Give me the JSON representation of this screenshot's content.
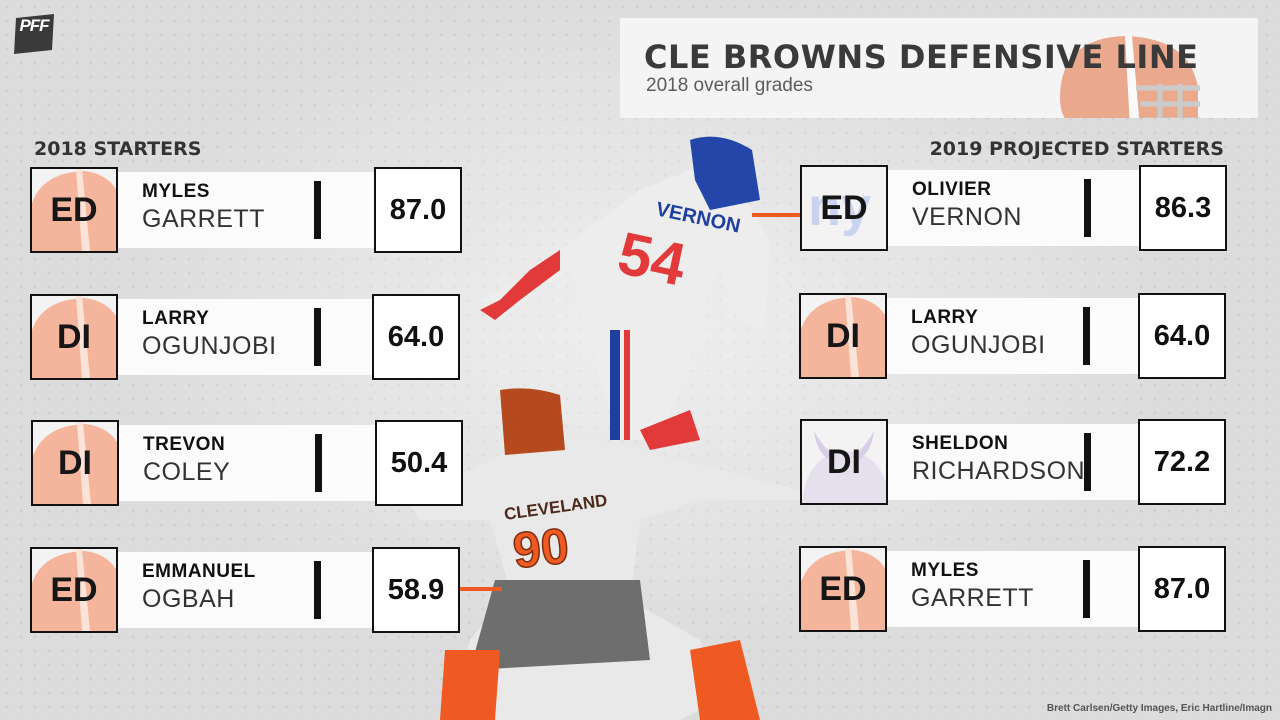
{
  "header": {
    "title": "CLE BROWNS DEFENSIVE LINE",
    "subtitle": "2018 overall grades",
    "logo_text": "PFF"
  },
  "left": {
    "heading": "2018 STARTERS",
    "rows": [
      {
        "pos": "ED",
        "first": "MYLES",
        "last": "GARRETT",
        "grade": "87.0",
        "team": "browns"
      },
      {
        "pos": "DI",
        "first": "LARRY",
        "last": "OGUNJOBI",
        "grade": "64.0",
        "team": "browns"
      },
      {
        "pos": "DI",
        "first": "TREVON",
        "last": "COLEY",
        "grade": "50.4",
        "team": "browns"
      },
      {
        "pos": "ED",
        "first": "EMMANUEL",
        "last": "OGBAH",
        "grade": "58.9",
        "team": "browns"
      }
    ]
  },
  "right": {
    "heading": "2019 PROJECTED STARTERS",
    "rows": [
      {
        "pos": "ED",
        "first": "OLIVIER",
        "last": "VERNON",
        "grade": "86.3",
        "team": "giants"
      },
      {
        "pos": "DI",
        "first": "LARRY",
        "last": "OGUNJOBI",
        "grade": "64.0",
        "team": "browns"
      },
      {
        "pos": "DI",
        "first": "SHELDON",
        "last": "RICHARDSON",
        "grade": "72.2",
        "team": "vikings"
      },
      {
        "pos": "ED",
        "first": "MYLES",
        "last": "GARRETT",
        "grade": "87.0",
        "team": "browns"
      }
    ]
  },
  "photo": {
    "jersey_top_name": "VERNON",
    "jersey_top_number": "54",
    "jersey_bottom_name": "CLEVELAND",
    "jersey_bottom_number": "90"
  },
  "credit": "Brett Carlsen/Getty Images, Eric Hartline/Imagn",
  "colors": {
    "accent": "#ef5a23",
    "browns_orange": "#f5b59c",
    "giants_blue": "#1f3f9e",
    "vikings_purple": "#4f2683"
  }
}
